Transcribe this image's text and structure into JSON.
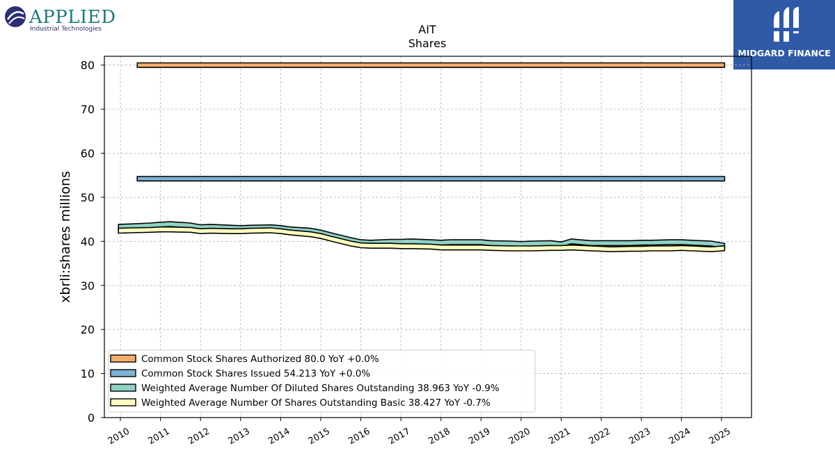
{
  "logos": {
    "left_brand": "APPLIED",
    "left_tagline": "Industrial Technologies",
    "right_label": "MIDGARD FINANCE"
  },
  "chart_data": {
    "type": "area",
    "title": "AIT",
    "subtitle": "Shares",
    "xlabel": "",
    "ylabel": "xbrli:shares millions",
    "ylim": [
      0,
      82
    ],
    "xlim": [
      2009.6,
      2025.75
    ],
    "y_ticks": [
      0,
      10,
      20,
      30,
      40,
      50,
      60,
      70,
      80
    ],
    "x_ticks": [
      2010,
      2011,
      2012,
      2013,
      2014,
      2015,
      2016,
      2017,
      2018,
      2019,
      2020,
      2021,
      2022,
      2023,
      2024,
      2025
    ],
    "grid": true,
    "legend_position": "lower-left",
    "series": [
      {
        "name": "Common Stock Shares Authorized  80.0 YoY +0.0%",
        "color": "#f5ad6b",
        "band": 1.0,
        "x": [
          2010.42,
          2025.08
        ],
        "y": [
          80.0,
          80.0
        ]
      },
      {
        "name": "Common Stock Shares Issued  54.213 YoY +0.0%",
        "color": "#7bb3d4",
        "band": 1.0,
        "x": [
          2010.42,
          2025.08
        ],
        "y": [
          54.213,
          54.213
        ]
      },
      {
        "name": "Weighted Average Number Of Diluted Shares Outstanding  38.963 YoY -0.9%",
        "color": "#8fd0c4",
        "x": [
          2009.95,
          2010.25,
          2010.75,
          2011.0,
          2011.25,
          2011.75,
          2012.0,
          2012.25,
          2012.75,
          2013.0,
          2013.25,
          2013.75,
          2014.0,
          2014.25,
          2014.75,
          2015.0,
          2015.25,
          2015.75,
          2016.0,
          2016.25,
          2016.75,
          2017.0,
          2017.25,
          2017.75,
          2018.0,
          2018.25,
          2018.75,
          2019.0,
          2019.25,
          2019.75,
          2020.0,
          2020.25,
          2020.75,
          2021.0,
          2021.25,
          2021.75,
          2022.0,
          2022.25,
          2022.75,
          2023.0,
          2023.25,
          2023.75,
          2024.0,
          2024.25,
          2024.75,
          2025.08
        ],
        "y": [
          43.3,
          43.4,
          43.6,
          43.8,
          43.9,
          43.6,
          43.2,
          43.3,
          43.1,
          43.0,
          43.1,
          43.2,
          43.0,
          42.7,
          42.4,
          42.0,
          41.4,
          40.3,
          39.8,
          39.7,
          39.9,
          39.9,
          40.0,
          39.8,
          39.7,
          39.8,
          39.8,
          39.8,
          39.6,
          39.5,
          39.4,
          39.5,
          39.6,
          39.3,
          40.0,
          39.6,
          39.6,
          39.6,
          39.6,
          39.7,
          39.7,
          39.8,
          39.8,
          39.7,
          39.5,
          38.963
        ]
      },
      {
        "name": "Weighted Average Number Of Shares Outstanding Basic  38.427 YoY -0.7%",
        "color": "#ffffc0",
        "x": [
          2009.95,
          2010.25,
          2010.75,
          2011.0,
          2011.25,
          2011.75,
          2012.0,
          2012.25,
          2012.75,
          2013.0,
          2013.25,
          2013.75,
          2014.0,
          2014.25,
          2014.75,
          2015.0,
          2015.25,
          2015.75,
          2016.0,
          2016.25,
          2016.75,
          2017.0,
          2017.25,
          2017.75,
          2018.0,
          2018.25,
          2018.75,
          2019.0,
          2019.25,
          2019.75,
          2020.0,
          2020.25,
          2020.75,
          2021.0,
          2021.25,
          2021.75,
          2022.0,
          2022.25,
          2022.75,
          2023.0,
          2023.25,
          2023.75,
          2024.0,
          2024.25,
          2024.75,
          2025.08
        ],
        "y": [
          42.4,
          42.5,
          42.6,
          42.7,
          42.7,
          42.6,
          42.3,
          42.4,
          42.3,
          42.3,
          42.4,
          42.5,
          42.3,
          42.0,
          41.6,
          41.2,
          40.6,
          39.5,
          39.1,
          39.0,
          39.0,
          38.9,
          38.9,
          38.8,
          38.6,
          38.6,
          38.6,
          38.6,
          38.5,
          38.4,
          38.4,
          38.4,
          38.5,
          38.5,
          38.6,
          38.4,
          38.3,
          38.2,
          38.3,
          38.3,
          38.4,
          38.4,
          38.5,
          38.4,
          38.2,
          38.427
        ]
      }
    ]
  }
}
